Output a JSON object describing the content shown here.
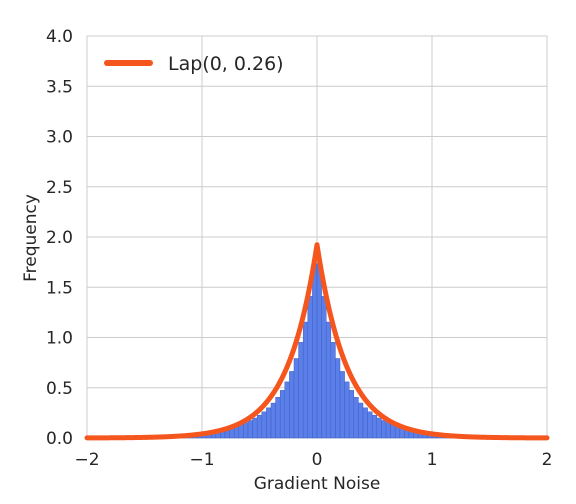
{
  "chart_data": {
    "type": "bar",
    "title": "",
    "xlabel": "Gradient Noise",
    "ylabel": "Frequency",
    "xlim": [
      -2,
      2
    ],
    "ylim": [
      0,
      4
    ],
    "xticks": [
      -2,
      -1,
      0,
      1,
      2
    ],
    "xtick_labels": [
      "−2",
      "−1",
      "0",
      "1",
      "2"
    ],
    "yticks": [
      0,
      0.5,
      1,
      1.5,
      2,
      2.5,
      3,
      3.5,
      4
    ],
    "ytick_labels": [
      "0.0",
      "0.5",
      "1.0",
      "1.5",
      "2.0",
      "2.5",
      "3.0",
      "3.5",
      "4.0"
    ],
    "grid": true,
    "legend": {
      "position": "top-left",
      "entries": [
        "Lap(0, 0.26)"
      ]
    },
    "histogram": {
      "bin_width": 0.04,
      "range": [
        -2,
        2
      ],
      "color": "#5b7fe8",
      "edge_color": "#3f5fc4",
      "peak": 1.8
    },
    "fitted_curve": {
      "name": "Lap(0, 0.26)",
      "distribution": "laplace",
      "loc": 0,
      "scale": 0.26,
      "color": "#f4561e"
    }
  }
}
